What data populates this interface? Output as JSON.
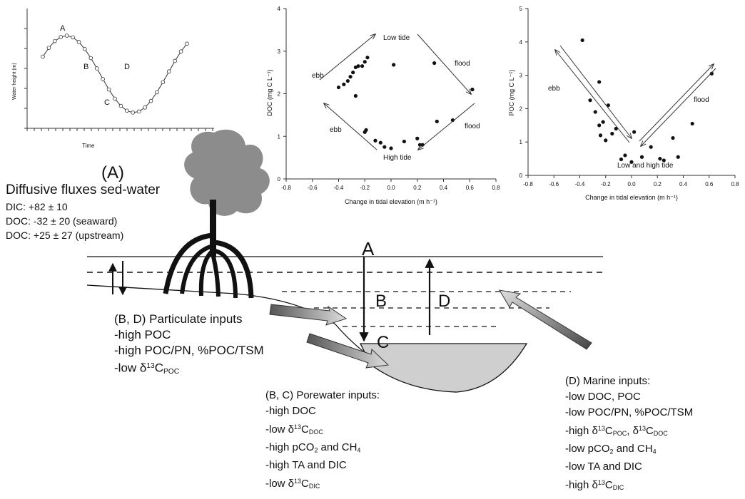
{
  "panelA": {
    "label": "(A)",
    "ylabel": "Water height (m)",
    "xlabel": "Time",
    "points": [
      "A",
      "B",
      "C",
      "D"
    ]
  },
  "flux": {
    "title": "Diffusive fluxes sed-water",
    "lines": [
      "DIC: +82 ± 10",
      "DOC: -32 ± 20 (seaward)",
      "DOC: +25 ± 27 (upstream)"
    ]
  },
  "chart_data": [
    {
      "type": "scatter",
      "xlabel": "Change in tidal elevation (m h⁻¹)",
      "ylabel": "DOC (mg C L⁻¹)",
      "xlim": [
        -0.8,
        0.8
      ],
      "ylim": [
        0,
        4
      ],
      "xticks": [
        "-0.8",
        "-0.6",
        "-0.4",
        "-0.2",
        "0.0",
        "0.2",
        "0.4",
        "0.6",
        "0.8"
      ],
      "yticks": [
        "0",
        "1",
        "2",
        "3",
        "4"
      ],
      "annotations": [
        "Low tide",
        "High tide",
        "ebb",
        "ebb",
        "flood",
        "flood"
      ],
      "points": [
        [
          -0.4,
          2.15
        ],
        [
          -0.36,
          2.22
        ],
        [
          -0.33,
          2.3
        ],
        [
          -0.31,
          2.4
        ],
        [
          -0.29,
          2.5
        ],
        [
          -0.27,
          2.62
        ],
        [
          -0.25,
          2.65
        ],
        [
          -0.22,
          2.65
        ],
        [
          -0.2,
          2.75
        ],
        [
          -0.18,
          2.85
        ],
        [
          -0.27,
          1.95
        ],
        [
          -0.2,
          1.1
        ],
        [
          -0.19,
          1.15
        ],
        [
          -0.12,
          0.9
        ],
        [
          -0.08,
          0.85
        ],
        [
          -0.05,
          0.75
        ],
        [
          0.0,
          0.72
        ],
        [
          0.02,
          2.68
        ],
        [
          0.1,
          0.88
        ],
        [
          0.2,
          0.95
        ],
        [
          0.22,
          0.8
        ],
        [
          0.24,
          0.8
        ],
        [
          0.33,
          2.72
        ],
        [
          0.35,
          1.35
        ],
        [
          0.47,
          1.38
        ],
        [
          0.62,
          2.1
        ]
      ]
    },
    {
      "type": "scatter",
      "xlabel": "Change in tidal elevation (m h⁻¹)",
      "ylabel": "POC (mg C L⁻¹)",
      "xlim": [
        -0.8,
        0.8
      ],
      "ylim": [
        0,
        5
      ],
      "xticks": [
        "-0.8",
        "-0.6",
        "-0.4",
        "-0.2",
        "0.0",
        "0.2",
        "0.4",
        "0.6",
        "0.8"
      ],
      "yticks": [
        "0",
        "1",
        "2",
        "3",
        "4",
        "5"
      ],
      "annotations": [
        "ebb",
        "flood",
        "Low and high tide"
      ],
      "points": [
        [
          -0.38,
          4.05
        ],
        [
          -0.32,
          2.25
        ],
        [
          -0.28,
          1.9
        ],
        [
          -0.25,
          2.8
        ],
        [
          -0.22,
          1.6
        ],
        [
          -0.25,
          1.5
        ],
        [
          -0.24,
          1.2
        ],
        [
          -0.2,
          1.05
        ],
        [
          -0.18,
          2.1
        ],
        [
          -0.15,
          1.25
        ],
        [
          -0.12,
          1.4
        ],
        [
          -0.08,
          0.48
        ],
        [
          -0.05,
          0.6
        ],
        [
          0.0,
          0.4
        ],
        [
          0.02,
          1.3
        ],
        [
          0.08,
          0.55
        ],
        [
          0.15,
          0.85
        ],
        [
          0.22,
          0.5
        ],
        [
          0.25,
          0.45
        ],
        [
          0.32,
          1.12
        ],
        [
          0.36,
          0.55
        ],
        [
          0.47,
          1.55
        ],
        [
          0.62,
          3.05
        ]
      ]
    }
  ],
  "cross": {
    "A": "A",
    "B": "B",
    "C": "C",
    "D": "D"
  },
  "particulate": {
    "title": "(B, D) Particulate inputs",
    "l1": "-high POC",
    "l2": "-high POC/PN, %POC/TSM",
    "l3_pre": "-low δ",
    "l3_sup": "13",
    "l3_mid": "C",
    "l3_sub": "POC"
  },
  "porewater": {
    "title": "(B, C) Porewater inputs:",
    "l1": "-high DOC",
    "l2_pre": "-low δ",
    "l2_sup": "13",
    "l2_mid": "C",
    "l2_sub": "DOC",
    "l3_pre": "-high pCO",
    "l3_sub": "2",
    "l3_post": " and CH",
    "l3_sub2": "4",
    "l4": "-high TA and DIC",
    "l5_pre": "-low δ",
    "l5_sup": "13",
    "l5_mid": "C",
    "l5_sub": "DIC"
  },
  "marine": {
    "title": "(D) Marine inputs:",
    "l1": "-low DOC, POC",
    "l2": "-low POC/PN, %POC/TSM",
    "l3_pre": "-high δ",
    "l3_sup": "13",
    "l3_mid": "C",
    "l3_sub": "POC",
    "l3_sep": ", δ",
    "l3_sup2": "13",
    "l3_mid2": "C",
    "l3_sub2": "DOC",
    "l4_pre": "-low pCO",
    "l4_sub": "2",
    "l4_post": " and CH",
    "l4_sub2": "4",
    "l5": "-low TA and DIC",
    "l6_pre": "-high δ",
    "l6_sup": "13",
    "l6_mid": "C",
    "l6_sub": "DIC"
  },
  "colors": {
    "tree": "#8c8c8c",
    "root": "#111111",
    "pool": "#cfcfcf",
    "arrow_grey": "#8a8a8a"
  }
}
